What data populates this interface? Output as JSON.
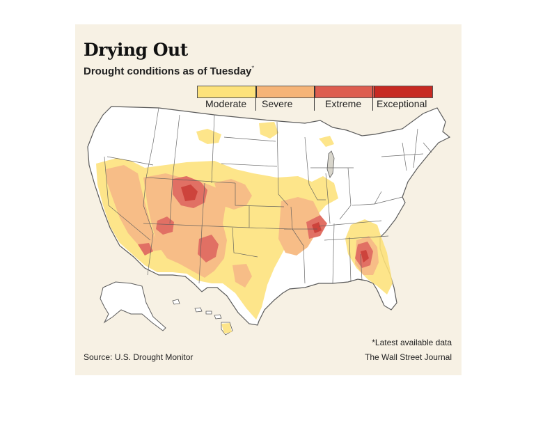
{
  "title": "Drying Out",
  "subtitle": "Drought conditions as of Tuesday",
  "subtitle_mark": "*",
  "legend": [
    {
      "label": "Moderate",
      "color": "#fde27a"
    },
    {
      "label": "Severe",
      "color": "#f6b477"
    },
    {
      "label": "Extreme",
      "color": "#dd5d4f"
    },
    {
      "label": "Exceptional",
      "color": "#c72a22"
    }
  ],
  "colors": {
    "land": "#ffffff",
    "border": "#5a5a5a",
    "background": "#f7f1e4",
    "lake": "#d9d6cc"
  },
  "note": "*Latest available data",
  "source": "Source: U.S. Drought Monitor",
  "credit": "The Wall Street Journal"
}
